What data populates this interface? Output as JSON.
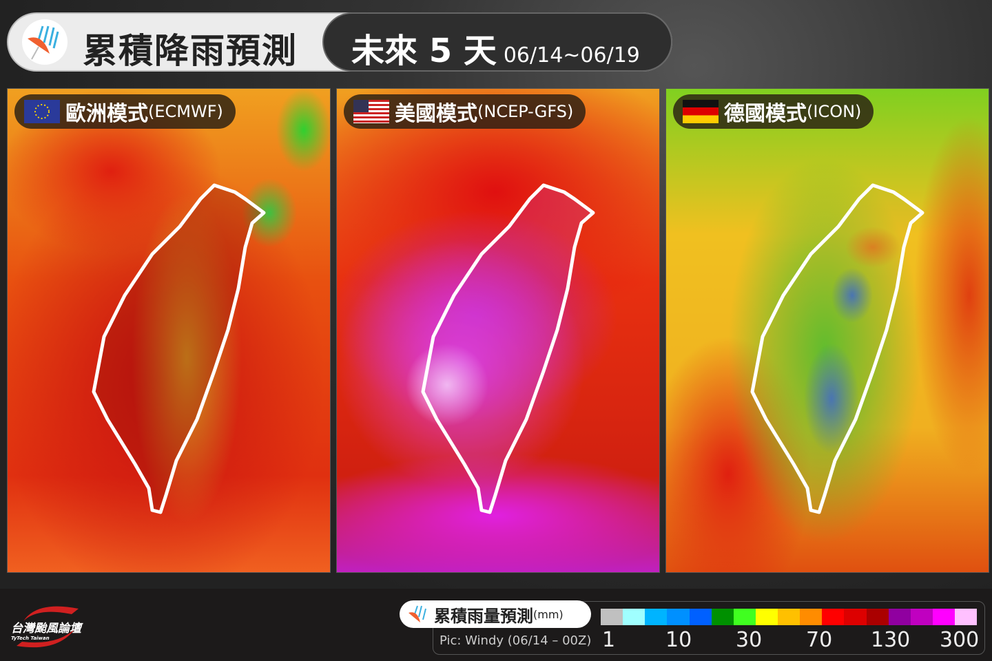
{
  "header": {
    "title": "累積降雨預測",
    "period": "未來 5 天",
    "dates": "06/14~06/19",
    "icon": "umbrella-rain-icon"
  },
  "panels": [
    {
      "label": "歐洲模式",
      "model": "(ECMWF)",
      "flag": "eu-flag-icon"
    },
    {
      "label": "美國模式",
      "model": "(NCEP-GFS)",
      "flag": "us-flag-icon"
    },
    {
      "label": "德國模式",
      "model": "(ICON)",
      "flag": "germany-flag-icon"
    }
  ],
  "legend": {
    "title": "累積雨量預測",
    "unit": "(mm)",
    "source": "Pic: Windy (06/14 – 00Z)",
    "colors": [
      "#c0c0c0",
      "#a0ffff",
      "#00b4ff",
      "#0090ff",
      "#0060ff",
      "#009000",
      "#40ff20",
      "#ffff00",
      "#ffc000",
      "#ff8c00",
      "#ff0000",
      "#dd0000",
      "#aa0000",
      "#9000a0",
      "#c000c0",
      "#ff00ff",
      "#ffc0ff"
    ],
    "ticks": [
      "1",
      "10",
      "30",
      "70",
      "130",
      "300"
    ]
  },
  "brand": {
    "name": "台灣颱風論壇",
    "sub": "TyTech Taiwan"
  }
}
